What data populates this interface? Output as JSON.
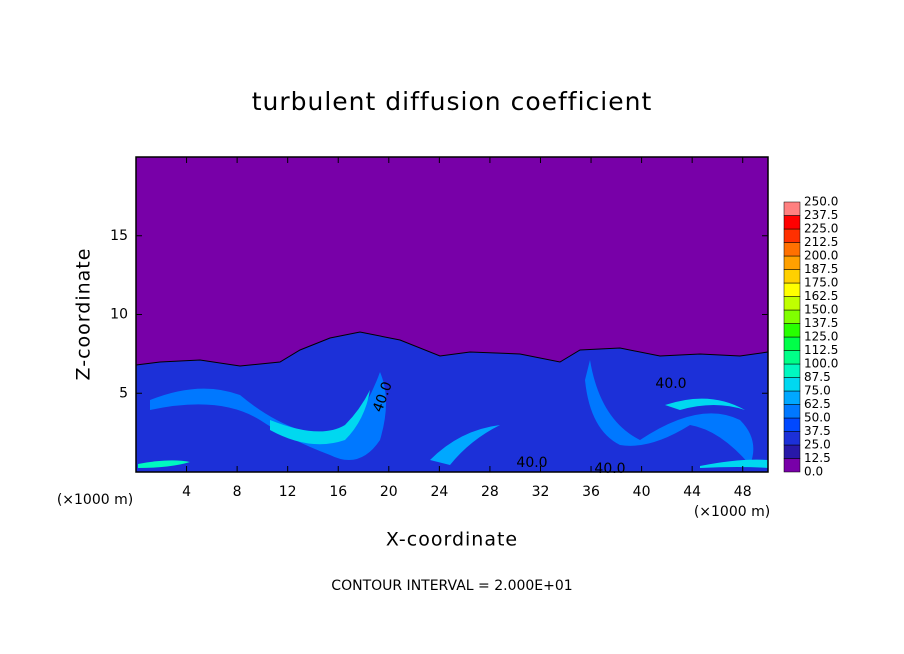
{
  "chart_data": {
    "type": "contour",
    "title": "turbulent diffusion coefficient",
    "x_label": "X-coordinate",
    "y_label": "Z-coordinate",
    "x_unit": "(×1000 m)",
    "y_unit": "(×1000 m)",
    "footer": "CONTOUR INTERVAL = 2.000E+01",
    "annotations": [
      "40.0",
      "40.0",
      "40.0",
      "40.0"
    ],
    "xlim": [
      0,
      50
    ],
    "xticks": [
      4,
      8,
      12,
      16,
      20,
      24,
      28,
      32,
      36,
      40,
      44,
      48
    ],
    "ylim": [
      0,
      20
    ],
    "yticks": [
      5,
      10,
      15
    ],
    "colorbar": {
      "levels": [
        {
          "value": 0,
          "label": "0.0"
        },
        12.5,
        {
          "value": 25,
          "label": "25.0"
        },
        37.5,
        {
          "value": 50,
          "label": "50.0"
        },
        62.5,
        {
          "value": 75,
          "label": "75.0"
        },
        87.5,
        {
          "value": 100,
          "label": "100.0"
        },
        112.5,
        {
          "value": 125,
          "label": "125.0"
        },
        137.5,
        {
          "value": 150,
          "label": "150.0"
        },
        162.5,
        {
          "value": 175,
          "label": "175.0"
        },
        187.5,
        {
          "value": 200,
          "label": "200.0"
        },
        212.5,
        {
          "value": 225,
          "label": "225.0"
        },
        237.5,
        {
          "value": 250,
          "label": "250.0"
        }
      ],
      "colors": [
        "#7800a8",
        "#2818a8",
        "#1c30d8",
        "#0048ff",
        "#0078ff",
        "#00a8ff",
        "#00d8f0",
        "#00f8c0",
        "#00ff88",
        "#00ff48",
        "#28ff00",
        "#80ff00",
        "#c0ff00",
        "#ffff00",
        "#ffd000",
        "#ffa000",
        "#ff7000",
        "#ff3000",
        "#ff0000",
        "#ff8080"
      ]
    }
  }
}
